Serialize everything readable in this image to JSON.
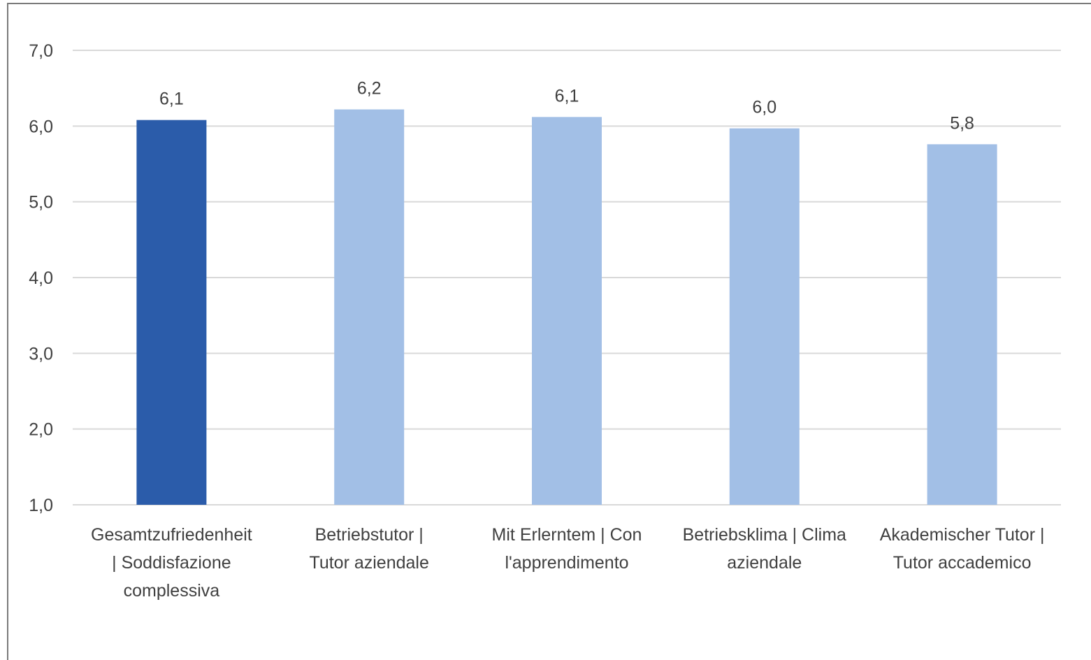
{
  "chart_data": {
    "type": "bar",
    "categories": [
      [
        "Gesamtzufriedenheit",
        "| Soddisfazione",
        "complessiva"
      ],
      [
        "Betriebstutor |",
        "Tutor aziendale"
      ],
      [
        "Mit Erlerntem  | Con",
        "l'apprendimento"
      ],
      [
        "Betriebsklima | Clima",
        "aziendale"
      ],
      [
        "Akademischer Tutor |",
        "Tutor accademico"
      ]
    ],
    "values": [
      6.08,
      6.22,
      6.12,
      5.97,
      5.76
    ],
    "data_labels": [
      "6,1",
      "6,2",
      "6,1",
      "6,0",
      "5,8"
    ],
    "highlight_index": 0,
    "ylim": [
      1.0,
      7.0
    ],
    "yticks": [
      1.0,
      2.0,
      3.0,
      4.0,
      5.0,
      6.0,
      7.0
    ],
    "ytick_labels": [
      "1,0",
      "2,0",
      "3,0",
      "4,0",
      "5,0",
      "6,0",
      "7,0"
    ],
    "grid": true,
    "legend": "none",
    "colors": {
      "highlight": "#2b5caa",
      "bar": "#a2bfe6",
      "grid": "#d9d9d9",
      "text": "#404040"
    }
  }
}
